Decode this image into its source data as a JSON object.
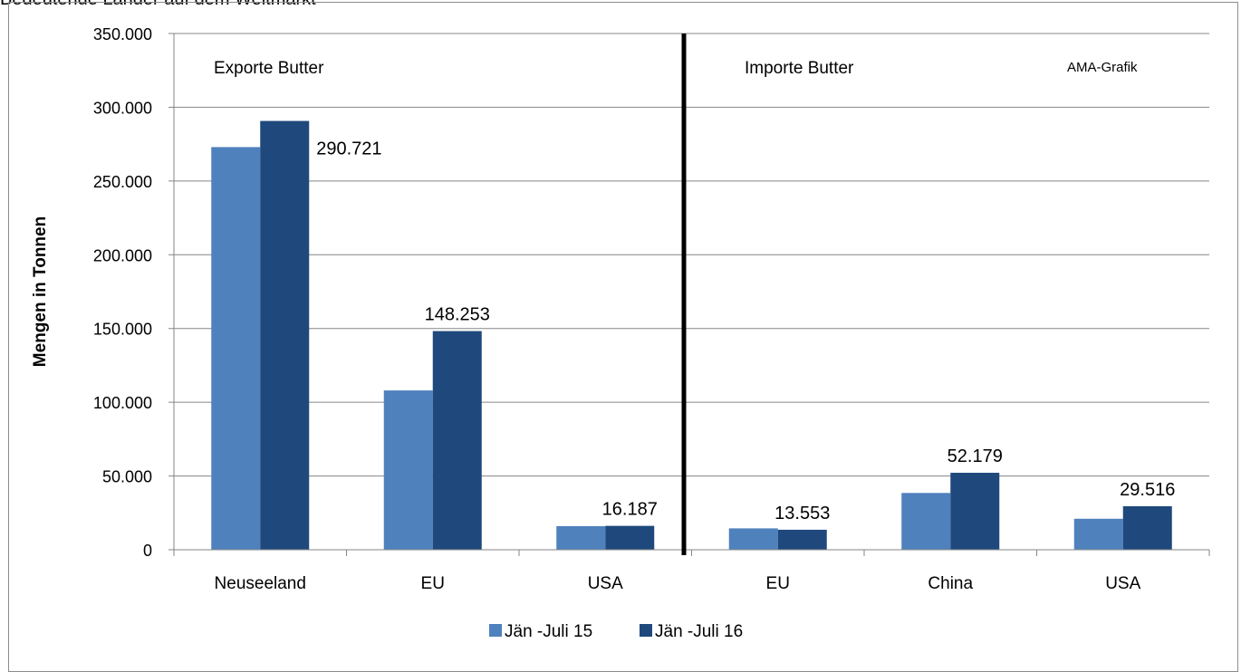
{
  "title": "Bedeutende Länder auf dem Weltmarkt",
  "panels": {
    "left": "Exporte Butter",
    "right": "Importe Butter",
    "credit": "AMA-Grafik"
  },
  "colors": {
    "series1": "#4f81bd",
    "series2": "#1f497d",
    "divider": "#000000",
    "grid": "#868686"
  },
  "chart_data": {
    "type": "bar",
    "categories": [
      "Neuseeland",
      "EU",
      "USA",
      "EU",
      "China",
      "USA"
    ],
    "series": [
      {
        "name": "Jän -Juli 15",
        "values": [
          273000,
          108000,
          16000,
          14500,
          38500,
          21000
        ]
      },
      {
        "name": "Jän -Juli 16",
        "values": [
          290721,
          148253,
          16187,
          13553,
          52179,
          29516
        ]
      }
    ],
    "data_labels": [
      "290.721",
      "148.253",
      "16.187",
      "13.553",
      "52.179",
      "29.516"
    ],
    "ylabel": "Mengen in Tonnen",
    "ylim": [
      0,
      350000
    ],
    "yticks": [
      0,
      50000,
      100000,
      150000,
      200000,
      250000,
      300000,
      350000
    ],
    "ytick_labels": [
      "0",
      "50.000",
      "100.000",
      "150.000",
      "200.000",
      "250.000",
      "300.000",
      "350.000"
    ],
    "grid": true,
    "legend": "bottom-center"
  }
}
